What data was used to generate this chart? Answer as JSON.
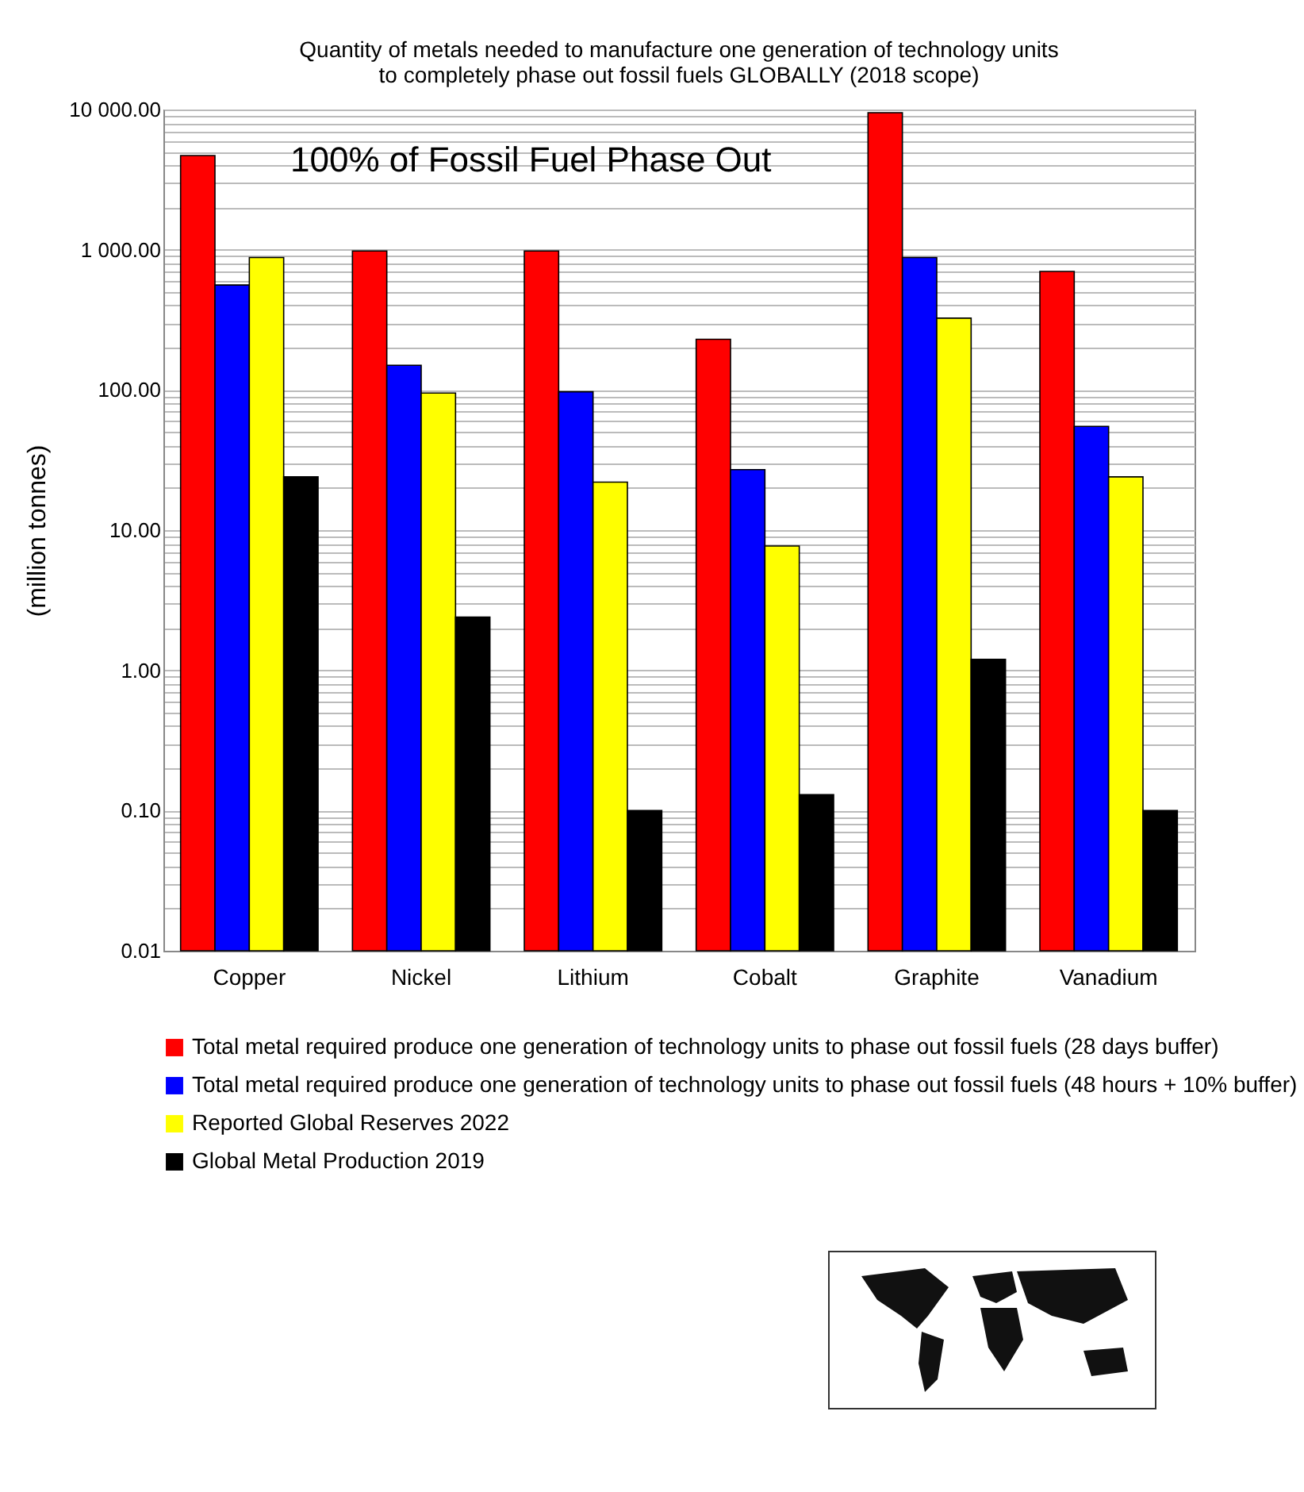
{
  "chart_data": {
    "type": "bar",
    "log": "y",
    "title": "Quantity of metals needed to manufacture one generation of technology units\nto completely phase out fossil fuels GLOBALLY (2018 scope)",
    "ylabel": "(million tonnes)",
    "annotations": [
      "100% of Fossil Fuel Phase Out"
    ],
    "categories": [
      "Copper",
      "Nickel",
      "Lithium",
      "Cobalt",
      "Graphite",
      "Vanadium"
    ],
    "series": [
      {
        "name": "Total metal required produce one generation of technology units to phase out fossil fuels (28 days buffer)",
        "color": "#ff0000",
        "values": [
          4700,
          980,
          980,
          230,
          9500,
          700
        ]
      },
      {
        "name": "Total metal required produce one generation of technology units to phase out fossil fuels (48 hours + 10% buffer)",
        "color": "#0000ff",
        "values": [
          560,
          150,
          97,
          27,
          880,
          55
        ]
      },
      {
        "name": "Reported Global Reserves 2022",
        "color": "#ffff00",
        "values": [
          880,
          95,
          22,
          7.7,
          325,
          24
        ]
      },
      {
        "name": "Global Metal Production 2019",
        "color": "#000000",
        "values": [
          24,
          2.4,
          0.1,
          0.13,
          1.2,
          0.1
        ]
      }
    ],
    "ylim": [
      0.01,
      10000
    ],
    "yticks": [
      {
        "value": 0.01,
        "label": "0.01"
      },
      {
        "value": 0.02,
        "label": null
      },
      {
        "value": 0.03,
        "label": null
      },
      {
        "value": 0.04,
        "label": null
      },
      {
        "value": 0.05,
        "label": null
      },
      {
        "value": 0.06,
        "label": null
      },
      {
        "value": 0.07,
        "label": null
      },
      {
        "value": 0.08,
        "label": null
      },
      {
        "value": 0.09,
        "label": null
      },
      {
        "value": 0.1,
        "label": "0.10"
      },
      {
        "value": 0.2,
        "label": null
      },
      {
        "value": 0.3,
        "label": null
      },
      {
        "value": 0.4,
        "label": null
      },
      {
        "value": 0.5,
        "label": null
      },
      {
        "value": 0.6,
        "label": null
      },
      {
        "value": 0.7,
        "label": null
      },
      {
        "value": 0.8,
        "label": null
      },
      {
        "value": 0.9,
        "label": null
      },
      {
        "value": 1,
        "label": "1.00"
      },
      {
        "value": 2,
        "label": null
      },
      {
        "value": 3,
        "label": null
      },
      {
        "value": 4,
        "label": null
      },
      {
        "value": 5,
        "label": null
      },
      {
        "value": 6,
        "label": null
      },
      {
        "value": 7,
        "label": null
      },
      {
        "value": 8,
        "label": null
      },
      {
        "value": 9,
        "label": null
      },
      {
        "value": 10,
        "label": "10.00"
      },
      {
        "value": 20,
        "label": null
      },
      {
        "value": 30,
        "label": null
      },
      {
        "value": 40,
        "label": null
      },
      {
        "value": 50,
        "label": null
      },
      {
        "value": 60,
        "label": null
      },
      {
        "value": 70,
        "label": null
      },
      {
        "value": 80,
        "label": null
      },
      {
        "value": 90,
        "label": null
      },
      {
        "value": 100,
        "label": "100.00"
      },
      {
        "value": 200,
        "label": null
      },
      {
        "value": 300,
        "label": null
      },
      {
        "value": 400,
        "label": null
      },
      {
        "value": 500,
        "label": null
      },
      {
        "value": 600,
        "label": null
      },
      {
        "value": 700,
        "label": null
      },
      {
        "value": 800,
        "label": null
      },
      {
        "value": 900,
        "label": null
      },
      {
        "value": 1000,
        "label": "1 000.00"
      },
      {
        "value": 2000,
        "label": null
      },
      {
        "value": 3000,
        "label": null
      },
      {
        "value": 4000,
        "label": null
      },
      {
        "value": 5000,
        "label": null
      },
      {
        "value": 6000,
        "label": null
      },
      {
        "value": 7000,
        "label": null
      },
      {
        "value": 8000,
        "label": null
      },
      {
        "value": 9000,
        "label": null
      },
      {
        "value": 10000,
        "label": "10 000.00"
      }
    ],
    "grid": "y",
    "legend": "bottom"
  }
}
